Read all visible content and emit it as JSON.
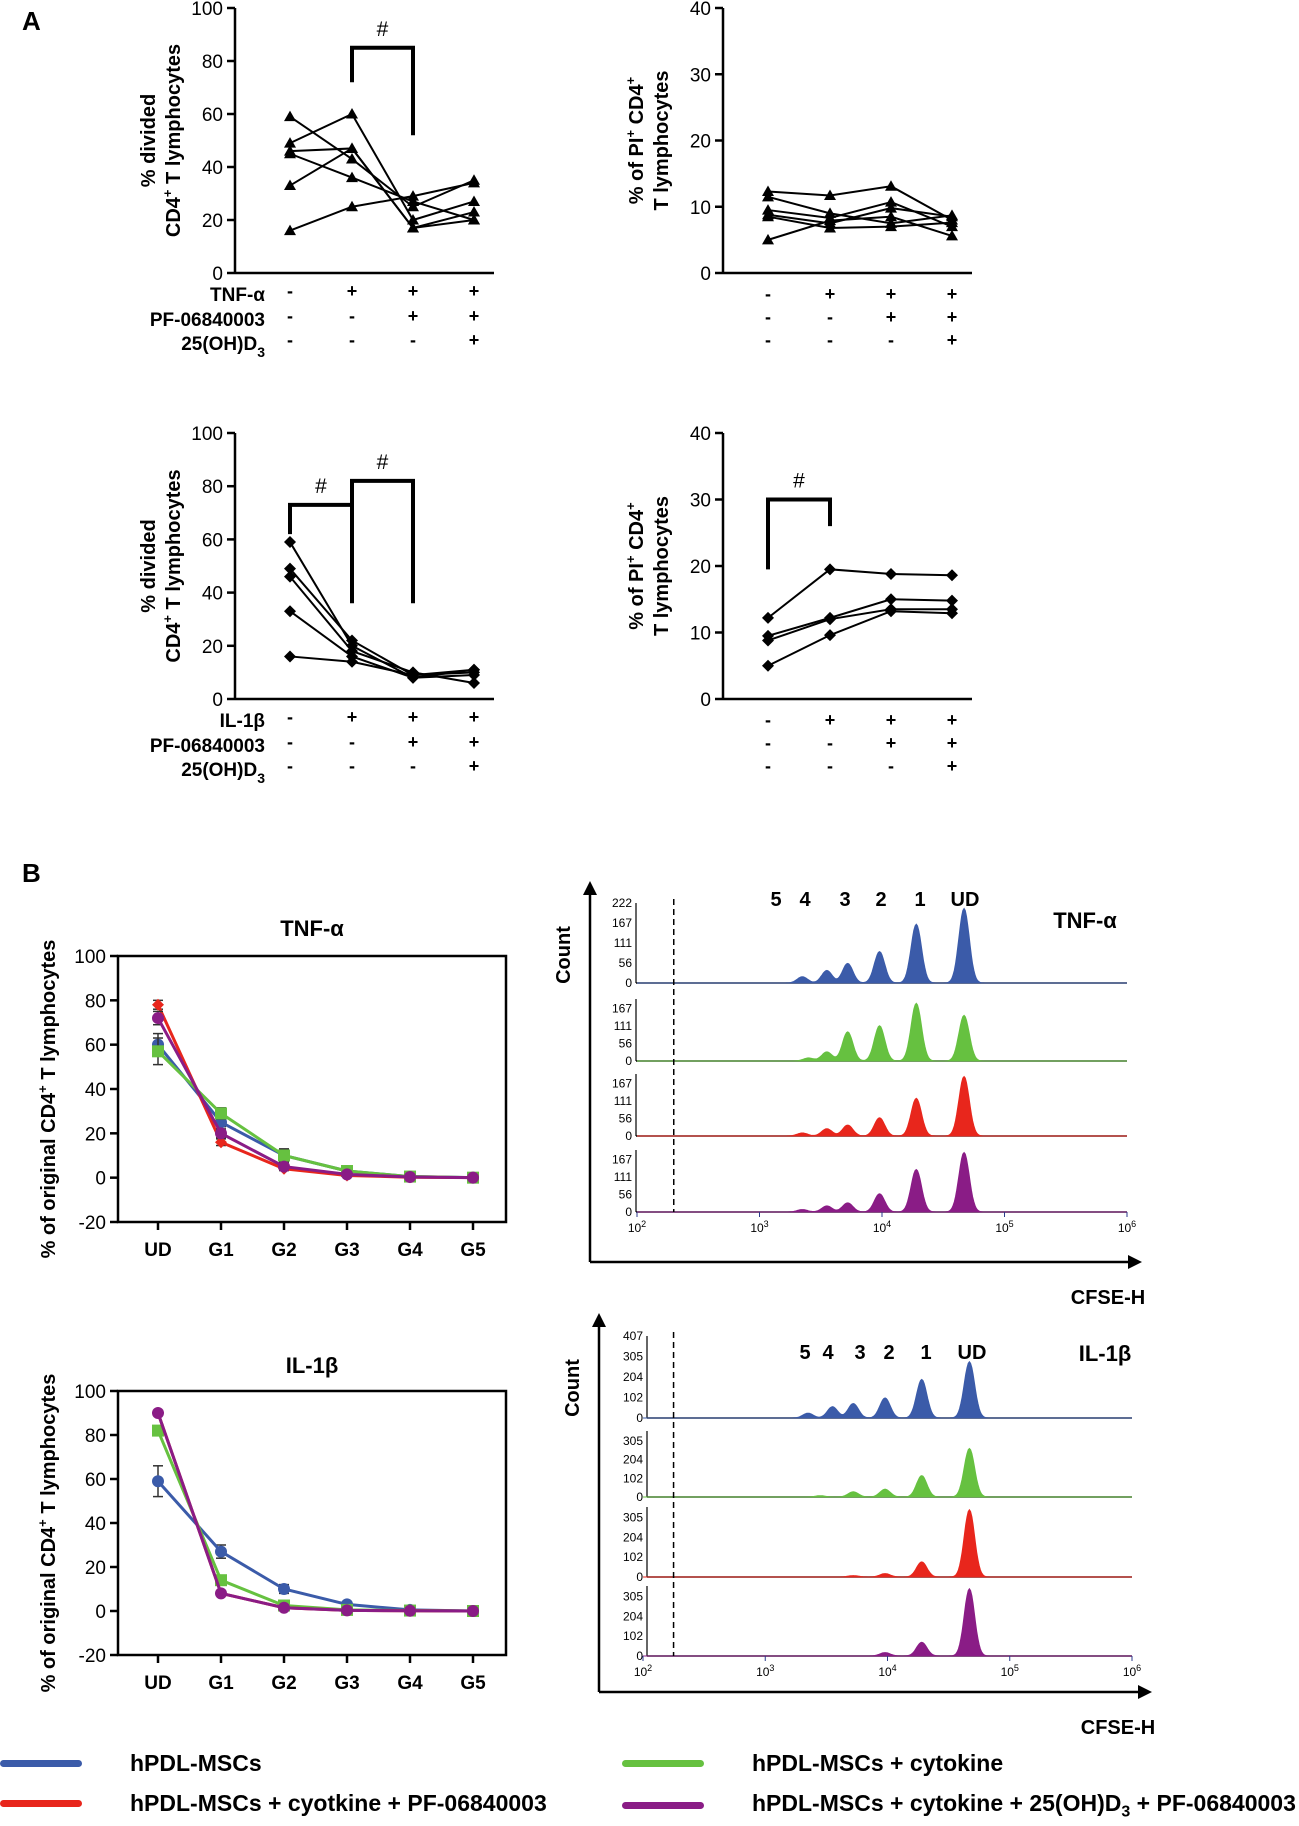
{
  "panels": {
    "A": "A",
    "B": "B"
  },
  "cond_labels": {
    "tnf": "TNF-α",
    "il1": "IL-1β",
    "pf": "PF-06840003",
    "vd_base": "25(OH)D",
    "vd_sub": "3"
  },
  "signs": {
    "tnf": [
      "-",
      "+",
      "+",
      "+"
    ],
    "il1": [
      "-",
      "+",
      "+",
      "+"
    ],
    "pf": [
      "-",
      "-",
      "+",
      "+"
    ],
    "vd": [
      "-",
      "-",
      "-",
      "+"
    ]
  },
  "colors": {
    "blue": "#3b5ba9",
    "green": "#66c140",
    "red": "#e8261c",
    "purple": "#8a1c86"
  },
  "chart_data": [
    {
      "id": "A1",
      "type": "line",
      "subtype": "paired-individual",
      "marker": "triangle",
      "ylabel_1": "% divided",
      "ylabel_2": "CD4",
      "ylabel_sup": "+",
      "ylabel_3": " T lymphocytes",
      "ylim": [
        0,
        100
      ],
      "yticks": [
        0,
        20,
        40,
        60,
        80,
        100
      ],
      "groups": 4,
      "series": [
        [
          59,
          43,
          25,
          35
        ],
        [
          49,
          60,
          20,
          27
        ],
        [
          46,
          47,
          17,
          23
        ],
        [
          33,
          47,
          17,
          20
        ],
        [
          16,
          25,
          29,
          34
        ],
        [
          45,
          36,
          27,
          20
        ]
      ],
      "significance": [
        {
          "from": 1,
          "to": 2,
          "label": "#"
        }
      ]
    },
    {
      "id": "A2",
      "type": "line",
      "subtype": "paired-individual",
      "marker": "triangle",
      "ylabel_1": "% of PI",
      "ylabel_1_sup": "+",
      "ylabel_1b": " CD4",
      "ylabel_1b_sup": "+",
      "ylabel_2": "T lymphocytes",
      "ylim": [
        0,
        40
      ],
      "yticks": [
        0,
        10,
        20,
        30,
        40
      ],
      "groups": 4,
      "series": [
        [
          12.3,
          11.7,
          13.1,
          8.0
        ],
        [
          11.5,
          9.0,
          7.5,
          8.7
        ],
        [
          9.5,
          8.3,
          10.7,
          7.0
        ],
        [
          8.8,
          7.5,
          9.8,
          8.5
        ],
        [
          8.5,
          6.8,
          7.0,
          7.6
        ],
        [
          5.0,
          7.9,
          8.5,
          5.6
        ]
      ],
      "significance": []
    },
    {
      "id": "A3",
      "type": "line",
      "subtype": "paired-individual",
      "marker": "diamond",
      "ylabel_1": "% divided",
      "ylabel_2": "CD4",
      "ylabel_sup": "+",
      "ylabel_3": " T lymphocytes",
      "ylim": [
        0,
        100
      ],
      "yticks": [
        0,
        20,
        40,
        60,
        80,
        100
      ],
      "groups": 4,
      "series": [
        [
          59,
          20,
          8,
          11
        ],
        [
          49,
          22,
          9,
          10
        ],
        [
          46,
          18,
          10,
          6
        ],
        [
          33,
          16,
          8,
          9
        ],
        [
          16,
          14,
          9,
          11
        ]
      ],
      "significance": [
        {
          "from": 0,
          "to": 1,
          "label": "#"
        },
        {
          "from": 1,
          "to": 2,
          "label": "#"
        }
      ]
    },
    {
      "id": "A4",
      "type": "line",
      "subtype": "paired-individual",
      "marker": "diamond",
      "ylabel_1": "% of PI",
      "ylabel_1_sup": "+",
      "ylabel_1b": " CD4",
      "ylabel_1b_sup": "+",
      "ylabel_2": "T lymphocytes",
      "ylim": [
        0,
        40
      ],
      "yticks": [
        0,
        10,
        20,
        30,
        40
      ],
      "groups": 4,
      "series": [
        [
          12.2,
          19.5,
          18.8,
          18.6
        ],
        [
          9.5,
          12.2,
          15.0,
          14.8
        ],
        [
          8.8,
          12.0,
          13.5,
          13.5
        ],
        [
          5.0,
          9.6,
          13.2,
          12.9
        ]
      ],
      "significance": [
        {
          "from": 0,
          "to": 1,
          "label": "#"
        }
      ]
    },
    {
      "id": "B1",
      "type": "line",
      "title": "TNF-α",
      "ylabel": "% of original CD4",
      "ylabel_sup": "+",
      "ylabel_tail": " T lymphocytes",
      "categories": [
        "UD",
        "G1",
        "G2",
        "G3",
        "G4",
        "G5"
      ],
      "ylim": [
        -20,
        100
      ],
      "yticks": [
        -20,
        0,
        20,
        40,
        60,
        80,
        100
      ],
      "series": [
        {
          "name": "hPDL-MSCs",
          "color": "blue",
          "marker": "circle",
          "values": [
            60,
            25,
            10,
            3,
            0.5,
            0
          ],
          "err": [
            5,
            2,
            1.5,
            0.8,
            0.3,
            0
          ]
        },
        {
          "name": "hPDL-MSCs + cytokine",
          "color": "green",
          "marker": "square",
          "values": [
            57,
            29,
            10,
            3,
            0.5,
            0
          ],
          "err": [
            6,
            2.5,
            3,
            1,
            0.3,
            0
          ]
        },
        {
          "name": "hPDL-MSCs + cyotkine + PF-06840003",
          "color": "red",
          "marker": "diamond",
          "values": [
            78,
            16,
            4,
            1,
            0.2,
            0
          ],
          "err": [
            2,
            1.5,
            0.8,
            0.3,
            0.1,
            0
          ]
        },
        {
          "name": "hPDL-MSCs + cytokine + 25(OH)D3 + PF-06840003",
          "color": "purple",
          "marker": "circle",
          "values": [
            72,
            20,
            5,
            1.5,
            0.3,
            0
          ],
          "err": [
            3,
            2,
            1,
            0.4,
            0.1,
            0
          ]
        }
      ]
    },
    {
      "id": "B2",
      "type": "line",
      "title": "IL-1β",
      "ylabel": "% of original CD4",
      "ylabel_sup": "+",
      "ylabel_tail": " T lymphocytes",
      "categories": [
        "UD",
        "G1",
        "G2",
        "G3",
        "G4",
        "G5"
      ],
      "ylim": [
        -20,
        100
      ],
      "yticks": [
        -20,
        0,
        20,
        40,
        60,
        80,
        100
      ],
      "series": [
        {
          "name": "hPDL-MSCs",
          "color": "blue",
          "marker": "circle",
          "values": [
            59,
            27,
            10,
            3,
            0.5,
            0
          ],
          "err": [
            7,
            3,
            2,
            0.8,
            0.3,
            0
          ]
        },
        {
          "name": "hPDL-MSCs + cytokine",
          "color": "green",
          "marker": "square",
          "values": [
            82,
            14,
            2.5,
            0.5,
            0.2,
            0
          ],
          "err": [
            1.5,
            1.5,
            0.6,
            0.2,
            0.1,
            0
          ]
        },
        {
          "name": "hPDL-MSCs + cyotkine + PF-06840003",
          "color": "red",
          "marker": "diamond",
          "values": [
            90,
            8,
            1.5,
            0.3,
            0.1,
            0
          ],
          "err": [
            1,
            1,
            0.4,
            0.1,
            0,
            0
          ]
        },
        {
          "name": "hPDL-MSCs + cytokine + 25(OH)D3 + PF-06840003",
          "color": "purple",
          "marker": "circle",
          "values": [
            90,
            8,
            1.5,
            0.3,
            0.1,
            0
          ],
          "err": [
            1,
            1,
            0.4,
            0.1,
            0,
            0
          ]
        }
      ]
    },
    {
      "id": "B3",
      "type": "histogram",
      "title": "TNF-α",
      "xlabel": "CFSE-H",
      "ylabel": "Count",
      "generations": [
        "5",
        "4",
        "3",
        "2",
        "1",
        "UD"
      ],
      "xscale": "log",
      "xticks": [
        "10",
        "10",
        "10",
        "10",
        "10"
      ],
      "xtick_exp": [
        "2",
        "3",
        "4",
        "5",
        "6"
      ],
      "gate_log": 2.3,
      "tracks": [
        {
          "color": "blue",
          "yticks": [
            "0",
            "56",
            "111",
            "167",
            "222"
          ],
          "peaks": [
            [
              3.35,
              0.08
            ],
            [
              3.55,
              0.16
            ],
            [
              3.72,
              0.25
            ],
            [
              3.98,
              0.4
            ],
            [
              4.28,
              0.75
            ],
            [
              4.67,
              0.95
            ]
          ]
        },
        {
          "color": "green",
          "yticks": [
            "0",
            "56",
            "111",
            "167"
          ],
          "peaks": [
            [
              3.4,
              0.05
            ],
            [
              3.55,
              0.15
            ],
            [
              3.72,
              0.48
            ],
            [
              3.98,
              0.58
            ],
            [
              4.28,
              0.95
            ],
            [
              4.67,
              0.75
            ]
          ]
        },
        {
          "color": "red",
          "yticks": [
            "0",
            "56",
            "111",
            "167"
          ],
          "peaks": [
            [
              3.35,
              0.05
            ],
            [
              3.55,
              0.12
            ],
            [
              3.72,
              0.18
            ],
            [
              3.98,
              0.3
            ],
            [
              4.28,
              0.62
            ],
            [
              4.67,
              0.98
            ]
          ]
        },
        {
          "color": "purple",
          "yticks": [
            "0",
            "56",
            "111",
            "167"
          ],
          "peaks": [
            [
              3.35,
              0.04
            ],
            [
              3.55,
              0.1
            ],
            [
              3.72,
              0.15
            ],
            [
              3.98,
              0.3
            ],
            [
              4.28,
              0.7
            ],
            [
              4.67,
              0.98
            ]
          ]
        }
      ]
    },
    {
      "id": "B4",
      "type": "histogram",
      "title": "IL-1β",
      "xlabel": "CFSE-H",
      "ylabel": "Count",
      "generations": [
        "5",
        "4",
        "3",
        "2",
        "1",
        "UD"
      ],
      "xscale": "log",
      "xticks": [
        "10",
        "10",
        "10",
        "10",
        "10"
      ],
      "xtick_exp": [
        "2",
        "3",
        "4",
        "5",
        "6"
      ],
      "gate_log": 2.25,
      "tracks": [
        {
          "color": "blue",
          "yticks": [
            "0",
            "102",
            "204",
            "305",
            "407"
          ],
          "peaks": [
            [
              3.35,
              0.06
            ],
            [
              3.55,
              0.14
            ],
            [
              3.72,
              0.18
            ],
            [
              3.98,
              0.25
            ],
            [
              4.28,
              0.48
            ],
            [
              4.67,
              0.7
            ]
          ]
        },
        {
          "color": "green",
          "yticks": [
            "0",
            "102",
            "204",
            "305"
          ],
          "peaks": [
            [
              3.45,
              0.02
            ],
            [
              3.72,
              0.08
            ],
            [
              3.98,
              0.12
            ],
            [
              4.28,
              0.33
            ],
            [
              4.67,
              0.75
            ]
          ]
        },
        {
          "color": "red",
          "yticks": [
            "0",
            "102",
            "204",
            "305"
          ],
          "peaks": [
            [
              3.72,
              0.02
            ],
            [
              3.98,
              0.05
            ],
            [
              4.28,
              0.22
            ],
            [
              4.67,
              0.98
            ]
          ]
        },
        {
          "color": "purple",
          "yticks": [
            "0",
            "102",
            "204",
            "305"
          ],
          "peaks": [
            [
              3.98,
              0.05
            ],
            [
              4.28,
              0.2
            ],
            [
              4.67,
              0.98
            ]
          ]
        }
      ]
    }
  ],
  "legend": {
    "items": [
      {
        "label": "hPDL-MSCs",
        "color": "blue"
      },
      {
        "label": "hPDL-MSCs + cyotkine + PF-06840003",
        "color": "red"
      },
      {
        "label": "hPDL-MSCs + cytokine",
        "color": "green"
      },
      {
        "label_base": "hPDL-MSCs + cytokine + 25(OH)D",
        "label_sub": "3",
        "label_tail": "  + PF-06840003",
        "color": "purple"
      }
    ]
  }
}
